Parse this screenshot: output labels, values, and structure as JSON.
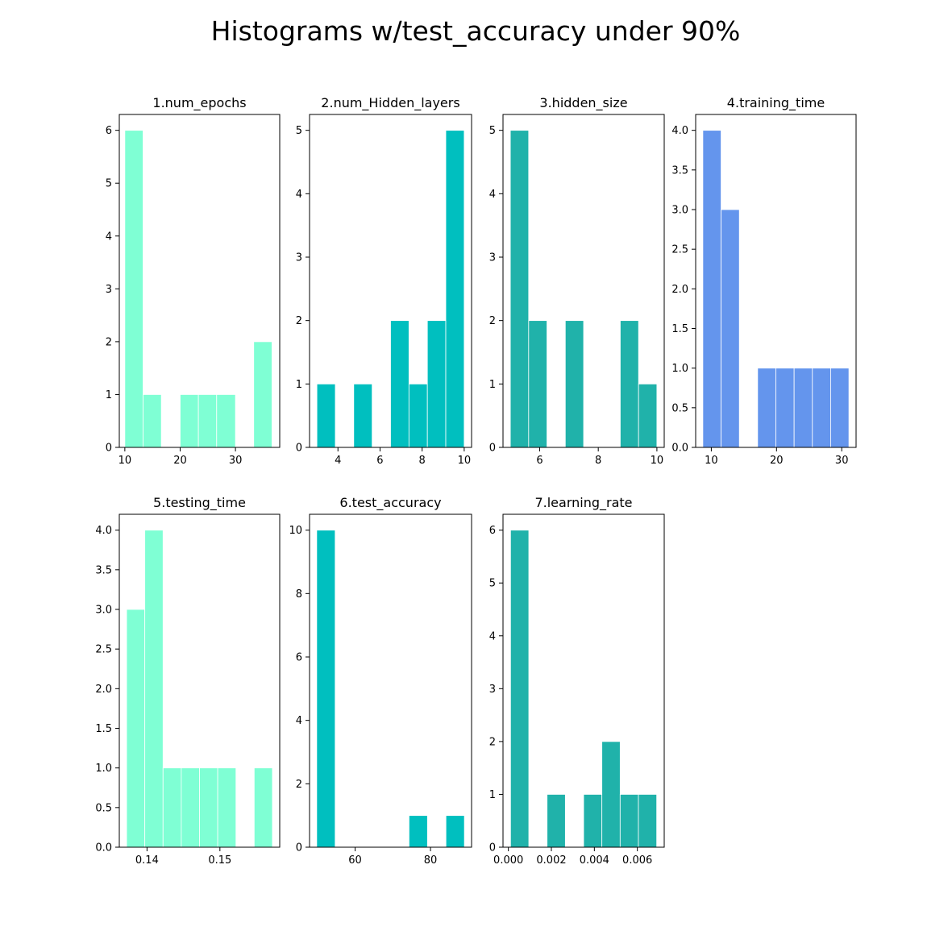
{
  "figure": {
    "title": "Histograms w/test_accuracy under 90%"
  },
  "chart_data": [
    {
      "type": "bar",
      "title": "1.num_epochs",
      "color": "#7fffd4",
      "bin_edges": [
        10,
        13.3,
        16.6,
        20,
        23.3,
        26.6,
        30,
        33.3,
        36.6
      ],
      "values": [
        6,
        1,
        0,
        1,
        1,
        1,
        0,
        2
      ],
      "xlim": [
        9,
        38
      ],
      "ylim": [
        0,
        6.3
      ],
      "xticks": [
        10,
        20,
        30
      ],
      "xtick_labels": [
        "10",
        "20",
        "30"
      ],
      "yticks": [
        0,
        1,
        2,
        3,
        4,
        5,
        6
      ],
      "ytick_labels": [
        "0",
        "1",
        "2",
        "3",
        "4",
        "5",
        "6"
      ]
    },
    {
      "type": "bar",
      "title": "2.num_Hidden_layers",
      "color": "#00bfbf",
      "bin_edges": [
        3,
        3.875,
        4.75,
        5.625,
        6.5,
        7.375,
        8.25,
        9.125,
        10
      ],
      "values": [
        1,
        0,
        1,
        0,
        2,
        1,
        2,
        5
      ],
      "xlim": [
        2.65,
        10.35
      ],
      "ylim": [
        0,
        5.25
      ],
      "xticks": [
        4,
        6,
        8,
        10
      ],
      "xtick_labels": [
        "4",
        "6",
        "8",
        "10"
      ],
      "yticks": [
        0,
        1,
        2,
        3,
        4,
        5
      ],
      "ytick_labels": [
        "0",
        "1",
        "2",
        "3",
        "4",
        "5"
      ]
    },
    {
      "type": "bar",
      "title": "3.hidden_size",
      "color": "#20b2aa",
      "bin_edges": [
        5,
        5.625,
        6.25,
        6.875,
        7.5,
        8.125,
        8.75,
        9.375,
        10
      ],
      "values": [
        5,
        2,
        0,
        2,
        0,
        0,
        2,
        1
      ],
      "xlim": [
        4.75,
        10.25
      ],
      "ylim": [
        0,
        5.25
      ],
      "xticks": [
        6,
        8,
        10
      ],
      "xtick_labels": [
        "6",
        "8",
        "10"
      ],
      "yticks": [
        0,
        1,
        2,
        3,
        4,
        5
      ],
      "ytick_labels": [
        "0",
        "1",
        "2",
        "3",
        "4",
        "5"
      ]
    },
    {
      "type": "bar",
      "title": "4.training_time",
      "color": "#6495ed",
      "bin_edges": [
        8.7,
        11.5,
        14.3,
        17.1,
        19.9,
        22.7,
        25.5,
        28.3,
        31.1
      ],
      "values": [
        4,
        3,
        0,
        1,
        1,
        1,
        1,
        1
      ],
      "xlim": [
        7.6,
        32.2
      ],
      "ylim": [
        0,
        4.2
      ],
      "xticks": [
        10,
        20,
        30
      ],
      "xtick_labels": [
        "10",
        "20",
        "30"
      ],
      "yticks": [
        0,
        0.5,
        1,
        1.5,
        2,
        2.5,
        3,
        3.5,
        4
      ],
      "ytick_labels": [
        "0.0",
        "0.5",
        "1.0",
        "1.5",
        "2.0",
        "2.5",
        "3.0",
        "3.5",
        "4.0"
      ]
    },
    {
      "type": "bar",
      "title": "5.testing_time",
      "color": "#7fffd4",
      "bin_edges": [
        0.1372,
        0.1397,
        0.1422,
        0.1447,
        0.1472,
        0.1497,
        0.1522,
        0.1547,
        0.1572
      ],
      "values": [
        3,
        4,
        1,
        1,
        1,
        1,
        0,
        1
      ],
      "xlim": [
        0.1362,
        0.1582
      ],
      "ylim": [
        0,
        4.2
      ],
      "xticks": [
        0.14,
        0.15
      ],
      "xtick_labels": [
        "0.14",
        "0.15"
      ],
      "yticks": [
        0,
        0.5,
        1,
        1.5,
        2,
        2.5,
        3,
        3.5,
        4
      ],
      "ytick_labels": [
        "0.0",
        "0.5",
        "1.0",
        "1.5",
        "2.0",
        "2.5",
        "3.0",
        "3.5",
        "4.0"
      ]
    },
    {
      "type": "bar",
      "title": "6.test_accuracy",
      "color": "#00bfbf",
      "bin_edges": [
        49.8,
        54.7,
        59.6,
        64.5,
        69.4,
        74.3,
        79.2,
        84.1,
        89
      ],
      "values": [
        10,
        0,
        0,
        0,
        0,
        1,
        0,
        1
      ],
      "xlim": [
        47.9,
        90.9
      ],
      "ylim": [
        0,
        10.5
      ],
      "xticks": [
        60,
        80
      ],
      "xtick_labels": [
        "60",
        "80"
      ],
      "yticks": [
        0,
        2,
        4,
        6,
        8,
        10
      ],
      "ytick_labels": [
        "0",
        "2",
        "4",
        "6",
        "8",
        "10"
      ]
    },
    {
      "type": "bar",
      "title": "7.learning_rate",
      "color": "#20b2aa",
      "bin_edges": [
        0.0001,
        0.00095,
        0.0018,
        0.00265,
        0.0035,
        0.00435,
        0.0052,
        0.00605,
        0.0069
      ],
      "values": [
        6,
        0,
        1,
        0,
        1,
        2,
        1,
        1
      ],
      "xlim": [
        -0.00025,
        0.00725
      ],
      "ylim": [
        0,
        6.3
      ],
      "xticks": [
        0,
        0.002,
        0.004,
        0.006
      ],
      "xtick_labels": [
        "0.000",
        "0.002",
        "0.004",
        "0.006"
      ],
      "yticks": [
        0,
        1,
        2,
        3,
        4,
        5,
        6
      ],
      "ytick_labels": [
        "0",
        "1",
        "2",
        "3",
        "4",
        "5",
        "6"
      ]
    }
  ]
}
